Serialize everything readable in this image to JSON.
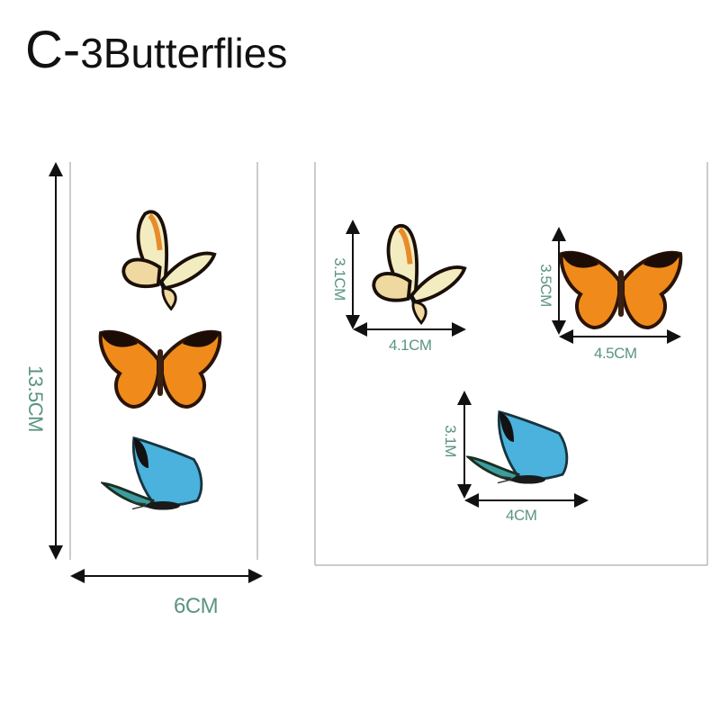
{
  "title": {
    "prefix": "C-",
    "text": "3Butterflies"
  },
  "sheet": {
    "height_label": "13.5CM",
    "width_label": "6CM"
  },
  "butterflies": [
    {
      "height_label": "3.1CM",
      "width_label": "4.1CM"
    },
    {
      "height_label": "3.5CM",
      "width_label": "4.5CM"
    },
    {
      "height_label": "3.1M",
      "width_label": "4CM"
    }
  ],
  "colors": {
    "label": "#5b9484",
    "orange": "#f08a1a",
    "pale": "#f3ecc0",
    "blue": "#4ab2dc"
  }
}
